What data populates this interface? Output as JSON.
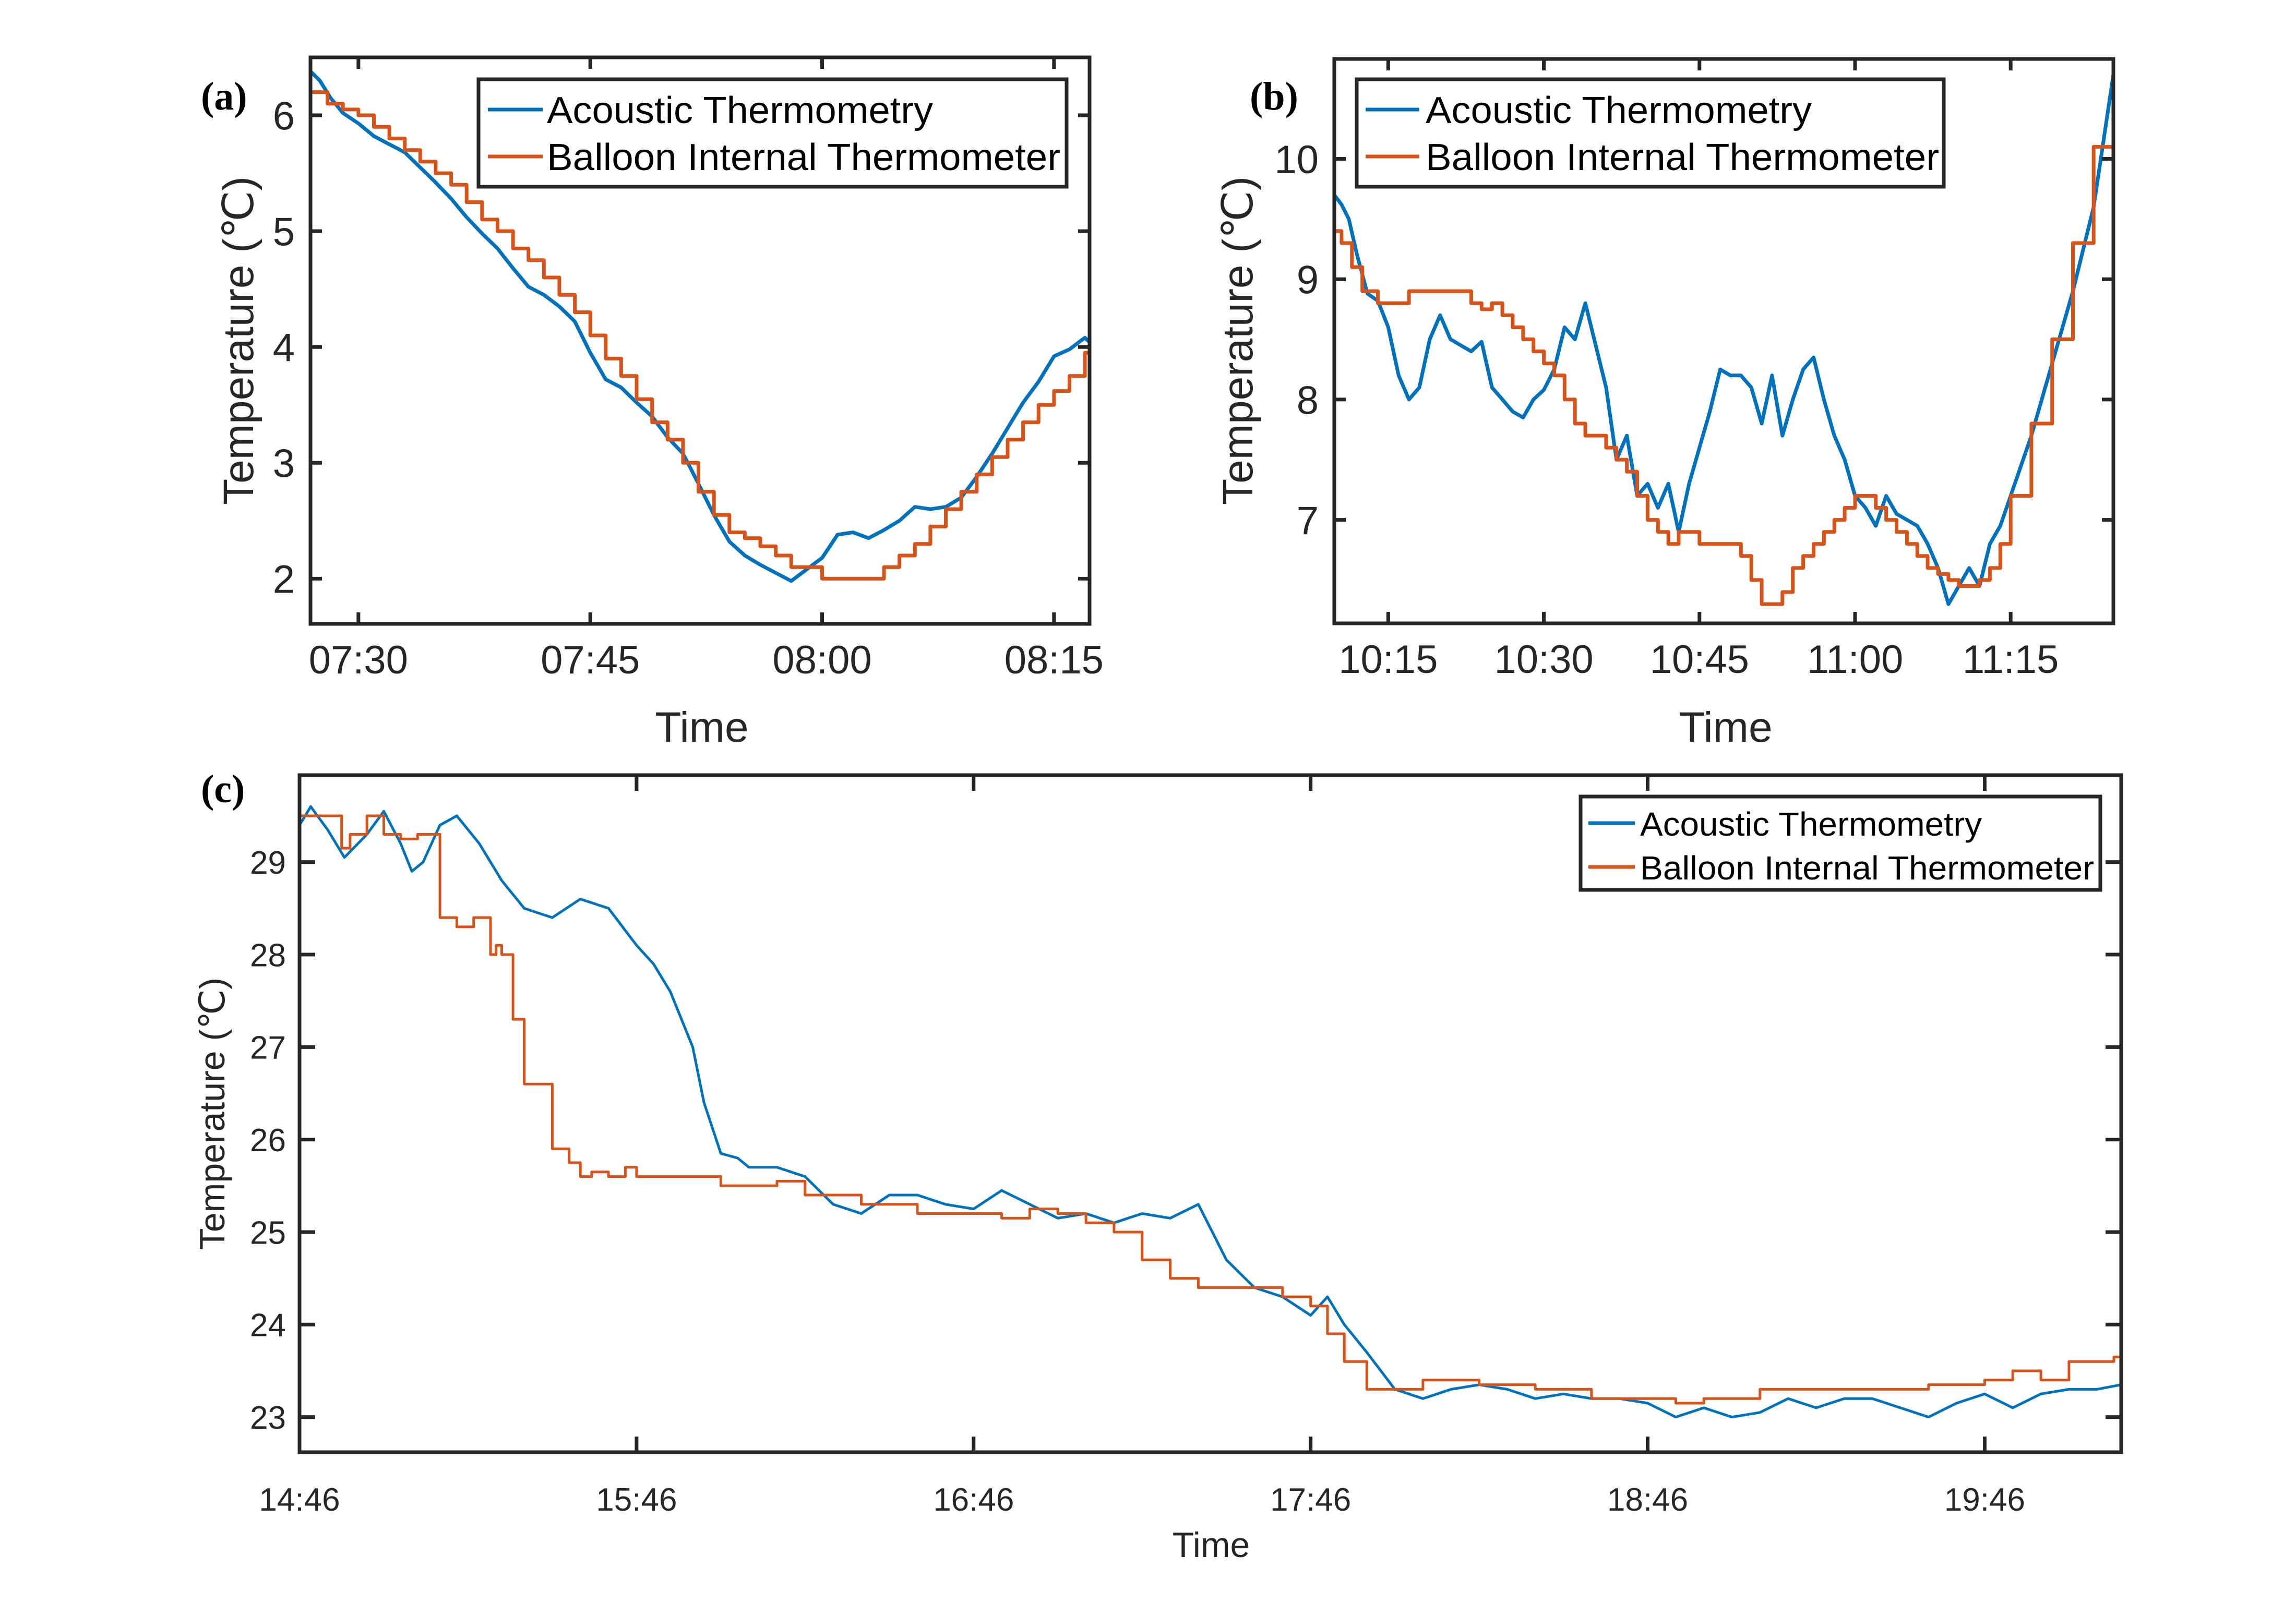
{
  "colors": {
    "acoustic": "#0072BD",
    "balloon": "#D95319",
    "axis": "#262626"
  },
  "legend": [
    "Acoustic Thermometry",
    "Balloon Internal Thermometer"
  ],
  "chart_data": [
    {
      "type": "line",
      "panel_label": "(a)",
      "xlabel": "Time",
      "ylabel": "Temperature (℃)",
      "x_unit": "minutes after 07:30",
      "xlim": [
        -3.1,
        47.3
      ],
      "ylim": [
        1.61,
        6.5
      ],
      "xticks": [
        0,
        15,
        30,
        45
      ],
      "xtick_labels": [
        "07:30",
        "07:45",
        "08:00",
        "08:15"
      ],
      "yticks": [
        2,
        3,
        4,
        5,
        6
      ],
      "ytick_labels": [
        "2",
        "3",
        "4",
        "5",
        "6"
      ],
      "legend_position": "top-right",
      "series": [
        {
          "name": "Acoustic Thermometry",
          "color": "#0072BD",
          "x": [
            -3.1,
            -2.5,
            -1.8,
            -1,
            0,
            1,
            2,
            3,
            4,
            5,
            6,
            7,
            8,
            9,
            10,
            11,
            12,
            13,
            14,
            15,
            16,
            17,
            18,
            19,
            20,
            21,
            22,
            23,
            24,
            25,
            26,
            27,
            28,
            29,
            30,
            31,
            32,
            33,
            34,
            35,
            36,
            37,
            38,
            39,
            40,
            41,
            42,
            43,
            44,
            45,
            46,
            47,
            47.3
          ],
          "y": [
            6.38,
            6.3,
            6.15,
            6.02,
            5.93,
            5.82,
            5.75,
            5.68,
            5.55,
            5.42,
            5.28,
            5.12,
            4.98,
            4.85,
            4.68,
            4.52,
            4.45,
            4.35,
            4.22,
            3.95,
            3.72,
            3.65,
            3.52,
            3.4,
            3.22,
            3.08,
            2.82,
            2.55,
            2.32,
            2.2,
            2.12,
            2.05,
            1.98,
            2.08,
            2.18,
            2.38,
            2.4,
            2.35,
            2.42,
            2.5,
            2.62,
            2.6,
            2.62,
            2.7,
            2.88,
            3.08,
            3.3,
            3.52,
            3.7,
            3.92,
            3.98,
            4.08,
            4.04
          ]
        },
        {
          "name": "Balloon Internal Thermometer",
          "color": "#D95319",
          "x": [
            -3.1,
            -2.5,
            -2,
            -1,
            0,
            1,
            2,
            3,
            4,
            5,
            6,
            7,
            8,
            9,
            10,
            11,
            12,
            13,
            14,
            15,
            16,
            17,
            18,
            19,
            20,
            21,
            22,
            23,
            24,
            25,
            26,
            27,
            28,
            29,
            30,
            31,
            32,
            33,
            34,
            35,
            36,
            37,
            38,
            39,
            40,
            41,
            42,
            43,
            44,
            45,
            46,
            47,
            47.3
          ],
          "y": [
            6.2,
            6.2,
            6.1,
            6.05,
            6.0,
            5.9,
            5.8,
            5.7,
            5.6,
            5.5,
            5.4,
            5.25,
            5.1,
            5.0,
            4.85,
            4.75,
            4.6,
            4.45,
            4.3,
            4.1,
            3.9,
            3.75,
            3.55,
            3.35,
            3.2,
            3.0,
            2.75,
            2.55,
            2.4,
            2.35,
            2.28,
            2.2,
            2.1,
            2.1,
            2.0,
            2.0,
            2.0,
            2.0,
            2.1,
            2.2,
            2.3,
            2.45,
            2.6,
            2.75,
            2.9,
            3.05,
            3.2,
            3.35,
            3.5,
            3.62,
            3.75,
            3.95,
            4.0
          ]
        }
      ]
    },
    {
      "type": "line",
      "panel_label": "(b)",
      "xlabel": "Time",
      "ylabel": "Temperature (℃)",
      "x_unit": "minutes after 10:15",
      "xlim": [
        -5.2,
        69.9
      ],
      "ylim": [
        6.14,
        10.83
      ],
      "xticks": [
        0,
        15,
        30,
        45,
        60
      ],
      "xtick_labels": [
        "10:15",
        "10:30",
        "10:45",
        "11:00",
        "11:15"
      ],
      "yticks": [
        7,
        8,
        9,
        10
      ],
      "ytick_labels": [
        "7",
        "8",
        "9",
        "10"
      ],
      "legend_position": "top-left",
      "series": [
        {
          "name": "Acoustic Thermometry",
          "color": "#0072BD",
          "x": [
            -5.2,
            -4.5,
            -3.8,
            -3,
            -2,
            -1,
            0,
            1,
            2,
            3,
            4,
            5,
            6,
            7,
            8,
            9,
            10,
            11,
            12,
            13,
            14,
            15,
            16,
            17,
            18,
            19,
            20,
            21,
            22,
            23,
            24,
            25,
            26,
            27,
            28,
            29,
            30,
            31,
            32,
            33,
            34,
            35,
            36,
            37,
            38,
            39,
            40,
            41,
            42,
            43,
            44,
            45,
            46,
            47,
            48,
            49,
            50,
            51,
            52,
            53,
            54,
            55,
            56,
            57,
            58,
            59,
            60,
            62,
            64,
            66,
            68,
            69.9
          ],
          "y": [
            9.7,
            9.62,
            9.5,
            9.2,
            8.88,
            8.82,
            8.6,
            8.2,
            8.0,
            8.1,
            8.5,
            8.7,
            8.5,
            8.45,
            8.4,
            8.48,
            8.1,
            8.0,
            7.9,
            7.85,
            8.0,
            8.08,
            8.25,
            8.6,
            8.5,
            8.8,
            8.45,
            8.1,
            7.5,
            7.7,
            7.2,
            7.3,
            7.1,
            7.3,
            6.9,
            7.3,
            7.6,
            7.9,
            8.25,
            8.2,
            8.2,
            8.1,
            7.8,
            8.2,
            7.7,
            8.0,
            8.25,
            8.35,
            8.0,
            7.7,
            7.5,
            7.2,
            7.1,
            6.95,
            7.2,
            7.05,
            7.0,
            6.95,
            6.8,
            6.6,
            6.3,
            6.45,
            6.6,
            6.45,
            6.8,
            6.95,
            7.2,
            7.7,
            8.3,
            8.9,
            9.6,
            10.7
          ]
        },
        {
          "name": "Balloon Internal Thermometer",
          "color": "#D95319",
          "x": [
            -5.2,
            -4.5,
            -3.5,
            -2.5,
            -1,
            0,
            1,
            2,
            3,
            5,
            8,
            9,
            10,
            11,
            12,
            13,
            14,
            15,
            16,
            17,
            18,
            19,
            20,
            21,
            22,
            23,
            24,
            25,
            26,
            27,
            28,
            30,
            32,
            34,
            35,
            36,
            37,
            38,
            39,
            40,
            41,
            42,
            43,
            44,
            45,
            46,
            47,
            48,
            49,
            50,
            51,
            52,
            53,
            54,
            55,
            56,
            57,
            58,
            59,
            60,
            62,
            64,
            66,
            68,
            69.9
          ],
          "y": [
            9.4,
            9.3,
            9.1,
            8.9,
            8.8,
            8.8,
            8.8,
            8.9,
            8.9,
            8.9,
            8.8,
            8.75,
            8.8,
            8.7,
            8.6,
            8.5,
            8.4,
            8.3,
            8.2,
            8.0,
            7.8,
            7.7,
            7.7,
            7.6,
            7.5,
            7.4,
            7.2,
            7.0,
            6.9,
            6.8,
            6.9,
            6.8,
            6.8,
            6.7,
            6.5,
            6.3,
            6.3,
            6.4,
            6.6,
            6.7,
            6.8,
            6.9,
            7.0,
            7.1,
            7.2,
            7.2,
            7.1,
            7.0,
            6.9,
            6.8,
            6.7,
            6.6,
            6.55,
            6.5,
            6.45,
            6.45,
            6.5,
            6.6,
            6.8,
            7.2,
            7.8,
            8.5,
            9.3,
            10.1,
            10.85
          ]
        }
      ]
    },
    {
      "type": "line",
      "panel_label": "(c)",
      "xlabel": "Time",
      "ylabel": "Temperature (℃)",
      "x_unit": "minutes after 14:46",
      "xlim": [
        0,
        324.3
      ],
      "ylim": [
        22.62,
        29.94
      ],
      "xticks": [
        0,
        60,
        120,
        180,
        240,
        300
      ],
      "xtick_labels": [
        "14:46",
        "15:46",
        "16:46",
        "17:46",
        "18:46",
        "19:46"
      ],
      "yticks": [
        23,
        24,
        25,
        26,
        27,
        28,
        29
      ],
      "ytick_labels": [
        "23",
        "24",
        "25",
        "26",
        "27",
        "28",
        "29"
      ],
      "legend_position": "top-right",
      "series": [
        {
          "name": "Acoustic Thermometry",
          "color": "#0072BD",
          "x": [
            0,
            2,
            5,
            8,
            12,
            15,
            18,
            20,
            22,
            25,
            28,
            32,
            36,
            40,
            45,
            50,
            55,
            60,
            63,
            66,
            70,
            72,
            75,
            78,
            80,
            85,
            90,
            95,
            100,
            105,
            110,
            115,
            120,
            125,
            130,
            135,
            140,
            145,
            150,
            155,
            160,
            165,
            170,
            175,
            180,
            183,
            186,
            190,
            195,
            200,
            205,
            210,
            215,
            220,
            225,
            230,
            235,
            240,
            245,
            250,
            255,
            260,
            265,
            270,
            275,
            280,
            285,
            290,
            295,
            300,
            305,
            310,
            315,
            320,
            324.3
          ],
          "y": [
            29.4,
            29.6,
            29.35,
            29.05,
            29.3,
            29.55,
            29.2,
            28.9,
            29.0,
            29.4,
            29.5,
            29.2,
            28.8,
            28.5,
            28.4,
            28.6,
            28.5,
            28.1,
            27.9,
            27.6,
            27.0,
            26.4,
            25.85,
            25.8,
            25.7,
            25.7,
            25.6,
            25.3,
            25.2,
            25.4,
            25.4,
            25.3,
            25.25,
            25.45,
            25.3,
            25.15,
            25.2,
            25.1,
            25.2,
            25.15,
            25.3,
            24.7,
            24.4,
            24.3,
            24.1,
            24.3,
            24.0,
            23.7,
            23.3,
            23.2,
            23.3,
            23.35,
            23.3,
            23.2,
            23.25,
            23.2,
            23.2,
            23.15,
            23.0,
            23.1,
            23.0,
            23.05,
            23.2,
            23.1,
            23.2,
            23.2,
            23.1,
            23.0,
            23.15,
            23.25,
            23.1,
            23.25,
            23.3,
            23.3,
            23.35
          ]
        },
        {
          "name": "Balloon Internal Thermometer",
          "color": "#D95319",
          "x": [
            0,
            7,
            7.5,
            9,
            12,
            15,
            18,
            21,
            25,
            28,
            31,
            34,
            35,
            36,
            38,
            40,
            45,
            48,
            50,
            52,
            55,
            58,
            60,
            63,
            65,
            70,
            72,
            75,
            80,
            85,
            90,
            95,
            100,
            105,
            110,
            115,
            120,
            125,
            130,
            135,
            140,
            145,
            150,
            155,
            160,
            165,
            170,
            175,
            180,
            183,
            186,
            190,
            195,
            200,
            210,
            220,
            230,
            240,
            245,
            250,
            260,
            270,
            280,
            290,
            300,
            305,
            310,
            315,
            320,
            323,
            324.3
          ],
          "y": [
            29.5,
            29.5,
            29.15,
            29.3,
            29.5,
            29.3,
            29.25,
            29.3,
            28.4,
            28.3,
            28.4,
            28.0,
            28.1,
            28.0,
            27.3,
            26.6,
            25.9,
            25.75,
            25.6,
            25.65,
            25.6,
            25.7,
            25.6,
            25.6,
            25.6,
            25.6,
            25.6,
            25.5,
            25.5,
            25.55,
            25.4,
            25.4,
            25.3,
            25.3,
            25.2,
            25.2,
            25.2,
            25.15,
            25.25,
            25.2,
            25.1,
            25.0,
            24.7,
            24.5,
            24.4,
            24.4,
            24.4,
            24.3,
            24.2,
            23.9,
            23.6,
            23.3,
            23.3,
            23.4,
            23.35,
            23.3,
            23.2,
            23.2,
            23.15,
            23.2,
            23.3,
            23.3,
            23.3,
            23.35,
            23.4,
            23.5,
            23.4,
            23.6,
            23.6,
            23.65,
            23.5
          ]
        }
      ]
    }
  ]
}
